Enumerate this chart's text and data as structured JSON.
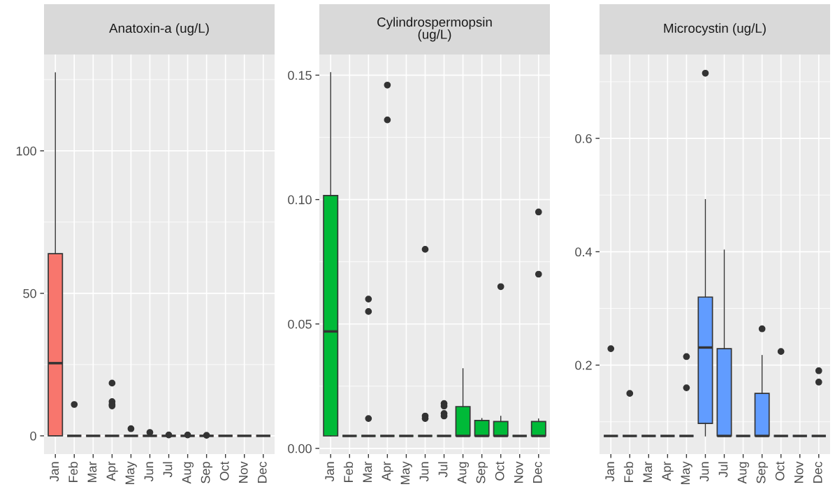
{
  "chart_data": [
    {
      "type": "box",
      "title": "Anatoxin-a (ug/L)",
      "categories": [
        "Jan",
        "Feb",
        "Mar",
        "Apr",
        "May",
        "Jun",
        "Jul",
        "Aug",
        "Sep",
        "Oct",
        "Nov",
        "Dec"
      ],
      "ylim": [
        -6.4,
        133.8
      ],
      "yticks": [
        0,
        50,
        100
      ],
      "grid": true,
      "series": [
        {
          "color": "#f8766d",
          "boxes": [
            {
              "low": 0,
              "q1": 0,
              "median": 25.5,
              "q3": 63.9,
              "high": 127.4
            },
            {
              "low": 0,
              "q1": 0,
              "median": 0,
              "q3": 0,
              "high": 0,
              "outliers": [
                11
              ]
            },
            {
              "low": 0,
              "q1": 0,
              "median": 0,
              "q3": 0,
              "high": 0
            },
            {
              "low": 0,
              "q1": 0,
              "median": 0,
              "q3": 0,
              "high": 0,
              "outliers": [
                18.5,
                12,
                11,
                10.5
              ]
            },
            {
              "low": 0,
              "q1": 0,
              "median": 0,
              "q3": 0,
              "high": 0,
              "outliers": [
                2.5
              ]
            },
            {
              "low": 0,
              "q1": 0,
              "median": 0,
              "q3": 0,
              "high": 0,
              "outliers": [
                1.2
              ]
            },
            {
              "low": 0,
              "q1": 0,
              "median": 0,
              "q3": 0,
              "high": 0,
              "outliers": [
                0.3
              ]
            },
            {
              "low": 0,
              "q1": 0,
              "median": 0,
              "q3": 0,
              "high": 0,
              "outliers": [
                0.3
              ]
            },
            {
              "low": 0,
              "q1": 0,
              "median": 0,
              "q3": 0,
              "high": 0,
              "outliers": [
                0.2
              ]
            },
            {
              "low": 0,
              "q1": 0,
              "median": 0,
              "q3": 0,
              "high": 0
            },
            {
              "low": 0,
              "q1": 0,
              "median": 0,
              "q3": 0,
              "high": 0
            },
            {
              "low": 0,
              "q1": 0,
              "median": 0,
              "q3": 0,
              "high": 0
            }
          ]
        }
      ]
    },
    {
      "type": "box",
      "title": "Cylindrospermopsin\n(ug/L)",
      "categories": [
        "Jan",
        "Feb",
        "Mar",
        "Apr",
        "May",
        "Jun",
        "Jul",
        "Aug",
        "Sep",
        "Oct",
        "Nov",
        "Dec"
      ],
      "ylim": [
        -0.0023,
        0.1583
      ],
      "yticks": [
        {
          "value": 0,
          "label": "0.00"
        },
        {
          "value": 0.05,
          "label": "0.05"
        },
        {
          "value": 0.1,
          "label": "0.10"
        },
        {
          "value": 0.15,
          "label": "0.15"
        }
      ],
      "grid": true,
      "series": [
        {
          "color": "#00ba38",
          "boxes": [
            {
              "low": 0.005,
              "q1": 0.005,
              "median": 0.047,
              "q3": 0.1016,
              "high": 0.151
            },
            {
              "low": 0.005,
              "q1": 0.005,
              "median": 0.005,
              "q3": 0.005,
              "high": 0.005
            },
            {
              "low": 0.005,
              "q1": 0.005,
              "median": 0.005,
              "q3": 0.005,
              "high": 0.005,
              "outliers": [
                0.06,
                0.055,
                0.012
              ]
            },
            {
              "low": 0.005,
              "q1": 0.005,
              "median": 0.005,
              "q3": 0.005,
              "high": 0.005,
              "outliers": [
                0.146,
                0.132
              ]
            },
            {
              "low": 0.005,
              "q1": 0.005,
              "median": 0.005,
              "q3": 0.005,
              "high": 0.005
            },
            {
              "low": 0.005,
              "q1": 0.005,
              "median": 0.005,
              "q3": 0.005,
              "high": 0.005,
              "outliers": [
                0.08,
                0.013,
                0.012
              ]
            },
            {
              "low": 0.005,
              "q1": 0.005,
              "median": 0.005,
              "q3": 0.005,
              "high": 0.005,
              "outliers": [
                0.018,
                0.017,
                0.014,
                0.013
              ]
            },
            {
              "low": 0.005,
              "q1": 0.005,
              "median": 0.005,
              "q3": 0.0168,
              "high": 0.032
            },
            {
              "low": 0.005,
              "q1": 0.005,
              "median": 0.005,
              "q3": 0.0112,
              "high": 0.012
            },
            {
              "low": 0.005,
              "q1": 0.005,
              "median": 0.005,
              "q3": 0.0108,
              "high": 0.0129,
              "outliers": [
                0.065
              ]
            },
            {
              "low": 0.005,
              "q1": 0.005,
              "median": 0.005,
              "q3": 0.005,
              "high": 0.005
            },
            {
              "low": 0.005,
              "q1": 0.005,
              "median": 0.005,
              "q3": 0.0108,
              "high": 0.0118,
              "outliers": [
                0.095,
                0.07
              ]
            }
          ]
        }
      ]
    },
    {
      "type": "box",
      "title": "Microcystin (ug/L)",
      "categories": [
        "Jan",
        "Feb",
        "Mar",
        "Apr",
        "May",
        "Jun",
        "Jul",
        "Aug",
        "Sep",
        "Oct",
        "Nov",
        "Dec"
      ],
      "ylim": [
        0.043,
        0.748
      ],
      "yticks": [
        0.2,
        0.4,
        0.6
      ],
      "grid": true,
      "series": [
        {
          "color": "#619cff",
          "boxes": [
            {
              "low": 0.075,
              "q1": 0.075,
              "median": 0.075,
              "q3": 0.075,
              "high": 0.075,
              "outliers": [
                0.229
              ]
            },
            {
              "low": 0.075,
              "q1": 0.075,
              "median": 0.075,
              "q3": 0.075,
              "high": 0.075,
              "outliers": [
                0.15
              ]
            },
            {
              "low": 0.075,
              "q1": 0.075,
              "median": 0.075,
              "q3": 0.075,
              "high": 0.075
            },
            {
              "low": 0.075,
              "q1": 0.075,
              "median": 0.075,
              "q3": 0.075,
              "high": 0.075
            },
            {
              "low": 0.075,
              "q1": 0.075,
              "median": 0.075,
              "q3": 0.075,
              "high": 0.075,
              "outliers": [
                0.215,
                0.16
              ]
            },
            {
              "low": 0.075,
              "q1": 0.097,
              "median": 0.231,
              "q3": 0.32,
              "high": 0.492,
              "outliers": [
                0.715
              ]
            },
            {
              "low": 0.075,
              "q1": 0.075,
              "median": 0.075,
              "q3": 0.229,
              "high": 0.403
            },
            {
              "low": 0.075,
              "q1": 0.075,
              "median": 0.075,
              "q3": 0.075,
              "high": 0.075
            },
            {
              "low": 0.075,
              "q1": 0.075,
              "median": 0.075,
              "q3": 0.15,
              "high": 0.217,
              "outliers": [
                0.264
              ]
            },
            {
              "low": 0.075,
              "q1": 0.075,
              "median": 0.075,
              "q3": 0.075,
              "high": 0.075,
              "outliers": [
                0.224
              ]
            },
            {
              "low": 0.075,
              "q1": 0.075,
              "median": 0.075,
              "q3": 0.075,
              "high": 0.075
            },
            {
              "low": 0.075,
              "q1": 0.075,
              "median": 0.075,
              "q3": 0.075,
              "high": 0.075,
              "outliers": [
                0.19,
                0.17
              ]
            }
          ]
        }
      ]
    }
  ]
}
